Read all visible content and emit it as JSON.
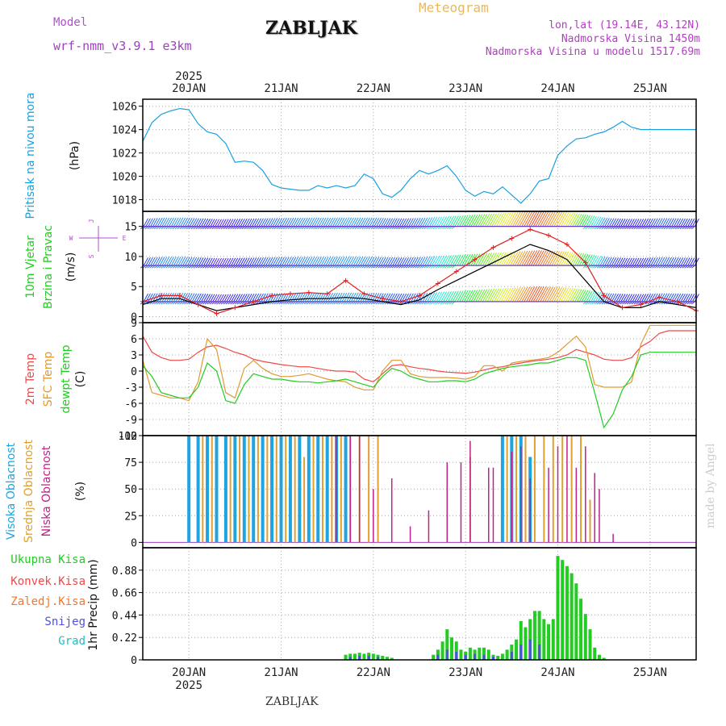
{
  "header": {
    "title": "ZABLJAK",
    "model_label": "Model",
    "model_name": "wrf-nmm_v3.9.1 e3km",
    "meteogram": "Meteogram",
    "lonlat": "lon,lat (19.14E, 43.12N)",
    "altitude": "Nadmorska Visina 1450m",
    "model_altitude": "Nadmorska Visina u modelu 1517.69m",
    "watermark": "made by Angel",
    "footer": "ZABLJAK"
  },
  "colors": {
    "pressure": "#1aa0e0",
    "t2m": "#f04848",
    "sfc": "#e09a30",
    "dew": "#22cc22",
    "high_cloud": "#1ea4e0",
    "mid_cloud": "#e0a030",
    "low_cloud": "#c0208a",
    "total_precip": "#22cc22",
    "conv_precip": "#f04848",
    "ice_precip": "#f07830",
    "snow": "#5050e0",
    "hail": "#20c0c0",
    "wind_speed": "#000000",
    "gust": "#e02020",
    "grid": "#aaaaaa"
  },
  "chart_data": [
    {
      "type": "line",
      "id": "pressure",
      "title": "Pritisak na nivou mora",
      "ylabel": "(hPa)",
      "ylim": [
        1017,
        1026.6
      ],
      "yticks": [
        "1018",
        "1020",
        "1022",
        "1024",
        "1026"
      ],
      "x_start_day": 19.5,
      "x_end_day": 25.5,
      "x": [
        19.5,
        19.6,
        19.7,
        19.8,
        19.9,
        20.0,
        20.1,
        20.2,
        20.3,
        20.4,
        20.5,
        20.6,
        20.7,
        20.8,
        20.9,
        21.0,
        21.1,
        21.2,
        21.3,
        21.4,
        21.5,
        21.6,
        21.7,
        21.8,
        21.9,
        22.0,
        22.1,
        22.2,
        22.3,
        22.4,
        22.5,
        22.6,
        22.7,
        22.8,
        22.9,
        23.0,
        23.1,
        23.2,
        23.3,
        23.4,
        23.5,
        23.6,
        23.7,
        23.8,
        23.9,
        24.0,
        24.1,
        24.2,
        24.3,
        24.4,
        24.5,
        24.6,
        24.7,
        24.8,
        24.9,
        25.0,
        25.1,
        25.2,
        25.3,
        25.4,
        25.5
      ],
      "values": [
        1023.0,
        1024.6,
        1025.3,
        1025.6,
        1025.8,
        1025.7,
        1024.5,
        1023.8,
        1023.6,
        1022.8,
        1021.2,
        1021.3,
        1021.2,
        1020.5,
        1019.3,
        1019.0,
        1018.9,
        1018.8,
        1018.8,
        1019.2,
        1019.0,
        1019.2,
        1019.0,
        1019.2,
        1020.2,
        1019.8,
        1018.5,
        1018.2,
        1018.8,
        1019.8,
        1020.5,
        1020.2,
        1020.5,
        1020.9,
        1020.0,
        1018.8,
        1018.3,
        1018.7,
        1018.5,
        1019.1,
        1018.4,
        1017.7,
        1018.5,
        1019.6,
        1019.8,
        1021.8,
        1022.6,
        1023.2,
        1023.3,
        1023.6,
        1023.8,
        1024.2,
        1024.7,
        1024.2,
        1024.0,
        1024.0,
        1024.0,
        1024.0,
        1024.0,
        1024.0,
        1024.0
      ]
    },
    {
      "type": "line",
      "id": "wind",
      "title": "10m Vjetar",
      "title2": "Brzina i Pravac",
      "ylabel": "(m/s)",
      "ylim": [
        -1,
        17.5
      ],
      "yticks": [
        "0",
        "5",
        "10",
        "15"
      ],
      "rose": [
        "S",
        "W",
        "E",
        "J"
      ],
      "barb_rows": [
        15,
        8.5,
        2.5
      ],
      "x": [
        19.5,
        19.7,
        19.9,
        20.1,
        20.3,
        20.5,
        20.7,
        20.9,
        21.1,
        21.3,
        21.5,
        21.7,
        21.9,
        22.1,
        22.3,
        22.5,
        22.7,
        22.9,
        23.1,
        23.3,
        23.5,
        23.7,
        23.9,
        24.1,
        24.3,
        24.5,
        24.7,
        24.9,
        25.1,
        25.3,
        25.5
      ],
      "speed": [
        2.0,
        3.0,
        3.0,
        2.0,
        1.0,
        1.5,
        2.0,
        2.5,
        2.8,
        3.0,
        3.0,
        3.2,
        3.0,
        2.5,
        2.0,
        2.8,
        4.5,
        6.0,
        7.5,
        9.0,
        10.5,
        12.0,
        11.0,
        9.5,
        6.0,
        2.5,
        1.5,
        1.5,
        2.5,
        2.0,
        1.5
      ],
      "gust": [
        2.5,
        3.5,
        3.5,
        2.0,
        0.5,
        1.5,
        2.5,
        3.5,
        3.8,
        4.0,
        3.8,
        6.0,
        3.8,
        3.0,
        2.5,
        3.5,
        5.5,
        7.5,
        9.5,
        11.5,
        13.0,
        14.5,
        13.5,
        12.0,
        9.0,
        3.5,
        1.5,
        2.0,
        3.2,
        2.5,
        1.0
      ]
    },
    {
      "type": "line",
      "id": "temperature",
      "labels": [
        "2m Temp",
        "SFC Temp",
        "dewpt Temp"
      ],
      "ylabel": "(C)",
      "ylim": [
        -12,
        9
      ],
      "yticks": [
        "-12",
        "-9",
        "-6",
        "-3",
        "0",
        "3",
        "6",
        "9"
      ],
      "x": [
        19.5,
        19.6,
        19.7,
        19.8,
        19.9,
        20.0,
        20.1,
        20.2,
        20.3,
        20.4,
        20.5,
        20.6,
        20.7,
        20.8,
        20.9,
        21.0,
        21.1,
        21.2,
        21.3,
        21.4,
        21.5,
        21.6,
        21.7,
        21.8,
        21.9,
        22.0,
        22.1,
        22.2,
        22.3,
        22.4,
        22.5,
        22.6,
        22.7,
        22.8,
        22.9,
        23.0,
        23.1,
        23.2,
        23.3,
        23.4,
        23.5,
        23.6,
        23.7,
        23.8,
        23.9,
        24.0,
        24.1,
        24.2,
        24.3,
        24.4,
        24.5,
        24.6,
        24.7,
        24.8,
        24.9,
        25.0,
        25.1,
        25.2,
        25.3,
        25.4,
        25.5
      ],
      "series": [
        {
          "name": "2m Temp",
          "values": [
            6.5,
            3.5,
            2.5,
            2.0,
            2.0,
            2.2,
            3.5,
            4.5,
            4.8,
            4.2,
            3.5,
            3.0,
            2.2,
            1.8,
            1.5,
            1.2,
            1.0,
            0.8,
            0.8,
            0.5,
            0.2,
            0.0,
            0.0,
            -0.2,
            -1.5,
            -2.0,
            -0.5,
            1.0,
            1.2,
            0.8,
            0.5,
            0.3,
            0.0,
            -0.2,
            -0.3,
            -0.4,
            -0.2,
            0.2,
            0.6,
            0.8,
            1.2,
            1.5,
            1.8,
            2.0,
            2.2,
            2.5,
            3.0,
            4.0,
            3.5,
            3.0,
            2.2,
            2.0,
            2.0,
            2.5,
            4.5,
            5.5,
            7.0,
            7.5,
            7.5,
            7.5,
            7.5
          ]
        },
        {
          "name": "SFC Temp",
          "values": [
            2.0,
            -4.0,
            -4.5,
            -5.0,
            -5.0,
            -5.5,
            -2.0,
            6.0,
            4.0,
            -4.0,
            -5.0,
            0.5,
            2.0,
            0.5,
            -0.5,
            -1.0,
            -1.0,
            -0.8,
            -0.5,
            -1.0,
            -1.5,
            -1.8,
            -2.0,
            -3.0,
            -3.5,
            -3.5,
            0.0,
            2.0,
            2.0,
            -0.5,
            -1.0,
            -1.2,
            -1.2,
            -1.2,
            -1.3,
            -1.5,
            -1.0,
            1.0,
            1.0,
            0.0,
            1.5,
            1.8,
            2.0,
            2.2,
            2.5,
            3.5,
            5.0,
            6.5,
            4.5,
            -2.5,
            -3.0,
            -3.0,
            -3.0,
            -2.0,
            5.0,
            8.5,
            8.5,
            8.5,
            8.5,
            8.5,
            8.5
          ]
        },
        {
          "name": "dewpt Temp",
          "values": [
            1.0,
            -1.0,
            -4.0,
            -4.5,
            -5.0,
            -5.0,
            -3.0,
            1.5,
            0.0,
            -5.5,
            -6.0,
            -2.5,
            -0.5,
            -1.0,
            -1.5,
            -1.5,
            -1.8,
            -2.0,
            -2.0,
            -2.2,
            -2.0,
            -1.8,
            -1.5,
            -2.0,
            -2.5,
            -3.0,
            -1.0,
            0.5,
            0.0,
            -1.0,
            -1.5,
            -2.0,
            -2.0,
            -1.8,
            -1.8,
            -2.0,
            -1.5,
            -0.5,
            0.0,
            0.5,
            0.8,
            1.0,
            1.2,
            1.5,
            1.5,
            2.0,
            2.5,
            2.5,
            2.0,
            -4.0,
            -10.5,
            -8.0,
            -3.5,
            -1.0,
            3.0,
            3.5,
            3.5,
            3.5,
            3.5,
            3.5,
            3.5
          ]
        }
      ]
    },
    {
      "type": "bar",
      "id": "clouds",
      "labels": [
        "Visoka Oblacnost",
        "Srednja Oblacnost",
        "Niska Oblacnost"
      ],
      "ylabel": "(%)",
      "ylim": [
        -5,
        100
      ],
      "yticks": [
        "0",
        "25",
        "50",
        "75",
        "100"
      ],
      "high_x": [
        20.0,
        20.1,
        20.2,
        20.3,
        20.4,
        20.5,
        20.6,
        20.7,
        20.8,
        20.9,
        21.0,
        21.1,
        21.2,
        21.3,
        21.4,
        21.5,
        21.6,
        21.7,
        23.4,
        23.5,
        23.6,
        23.7
      ],
      "high_v": [
        100,
        100,
        100,
        100,
        100,
        100,
        100,
        100,
        100,
        100,
        100,
        100,
        100,
        100,
        100,
        100,
        100,
        100,
        100,
        100,
        100,
        80
      ],
      "mid_x": [
        20.15,
        20.25,
        20.45,
        20.55,
        20.65,
        20.75,
        20.85,
        20.95,
        21.05,
        21.15,
        21.25,
        21.35,
        21.45,
        21.55,
        21.65,
        21.75,
        21.85,
        21.95,
        22.05,
        23.05,
        23.45,
        23.55,
        23.65,
        23.75,
        23.85,
        23.95,
        24.05,
        24.15,
        24.25,
        24.35
      ],
      "mid_v": [
        100,
        100,
        100,
        100,
        100,
        100,
        100,
        100,
        100,
        100,
        80,
        100,
        100,
        100,
        100,
        100,
        100,
        100,
        100,
        80,
        100,
        100,
        100,
        100,
        100,
        100,
        100,
        100,
        100,
        40
      ],
      "low_x": [
        21.6,
        21.75,
        21.85,
        22.0,
        22.2,
        22.4,
        22.6,
        22.8,
        22.95,
        23.05,
        23.25,
        23.3,
        23.5,
        23.6,
        23.7,
        23.9,
        24.0,
        24.1,
        24.2,
        24.3,
        24.4,
        24.45,
        24.6
      ],
      "low_v": [
        100,
        100,
        100,
        50,
        60,
        15,
        30,
        75,
        75,
        95,
        70,
        70,
        85,
        90,
        60,
        70,
        90,
        100,
        70,
        90,
        65,
        50,
        8
      ]
    },
    {
      "type": "bar",
      "id": "precip",
      "labels": [
        "Ukupna Kisa",
        "Konvek.Kisa",
        "Zaledj.Kisa",
        "Snijeg",
        "Grad"
      ],
      "ylabel": "1hr Precip (mm)",
      "ylim": [
        0,
        1.1
      ],
      "yticks": [
        "0",
        "0.22",
        "0.44",
        "0.66",
        "0.88"
      ],
      "x_labels": [
        "20JAN",
        "21JAN",
        "22JAN",
        "23JAN",
        "24JAN",
        "25JAN"
      ],
      "year": "2025",
      "total_x": [
        21.7,
        21.75,
        21.8,
        21.85,
        21.9,
        21.95,
        22.0,
        22.05,
        22.1,
        22.15,
        22.2,
        22.65,
        22.7,
        22.75,
        22.8,
        22.85,
        22.9,
        22.95,
        23.0,
        23.05,
        23.1,
        23.15,
        23.2,
        23.25,
        23.3,
        23.35,
        23.4,
        23.45,
        23.5,
        23.55,
        23.6,
        23.65,
        23.7,
        23.75,
        23.8,
        23.85,
        23.9,
        23.95,
        24.0,
        24.05,
        24.1,
        24.15,
        24.2,
        24.25,
        24.3,
        24.35,
        24.4,
        24.45,
        24.5
      ],
      "total_v": [
        0.05,
        0.06,
        0.06,
        0.07,
        0.06,
        0.07,
        0.06,
        0.05,
        0.04,
        0.03,
        0.02,
        0.05,
        0.1,
        0.18,
        0.3,
        0.22,
        0.18,
        0.1,
        0.08,
        0.12,
        0.1,
        0.12,
        0.12,
        0.1,
        0.05,
        0.04,
        0.06,
        0.1,
        0.15,
        0.2,
        0.38,
        0.32,
        0.4,
        0.48,
        0.48,
        0.4,
        0.35,
        0.4,
        1.02,
        0.98,
        0.92,
        0.85,
        0.75,
        0.6,
        0.45,
        0.3,
        0.12,
        0.05,
        0.02
      ],
      "snow_x": [
        21.75,
        21.85,
        21.95,
        22.05,
        22.7,
        22.8,
        22.9,
        23.0,
        23.1,
        23.2,
        23.3,
        23.5,
        23.6,
        23.7,
        23.8
      ],
      "snow_v": [
        0.03,
        0.04,
        0.04,
        0.03,
        0.05,
        0.1,
        0.08,
        0.05,
        0.06,
        0.05,
        0.03,
        0.08,
        0.15,
        0.2,
        0.15
      ]
    }
  ]
}
